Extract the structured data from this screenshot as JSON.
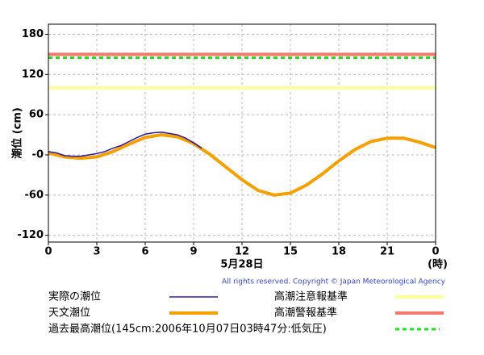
{
  "chart_data": {
    "type": "line",
    "ylabel": "潮位 (cm)",
    "xlabel": "5月28日",
    "xunit": "(時)",
    "copyright": "All rights reserved. Copyright © Japan Meteorological Agency",
    "xlim": [
      0,
      24
    ],
    "xticks": [
      0,
      3,
      6,
      9,
      12,
      15,
      18,
      21,
      {
        "value": 24,
        "label": "0"
      }
    ],
    "ylim": [
      -130,
      195
    ],
    "yticks": [
      -120,
      -60,
      {
        "value": 0,
        "label": "-0"
      },
      60,
      120,
      180
    ],
    "grid": true,
    "series": [
      {
        "name": "実際の潮位",
        "color": "#2a1aa8",
        "x": [
          0,
          0.5,
          1,
          1.5,
          2,
          2.5,
          3,
          3.5,
          4,
          4.5,
          5,
          5.5,
          6,
          6.5,
          7,
          7.5,
          8,
          8.5,
          9,
          9.5
        ],
        "values": [
          5,
          3,
          -1,
          -2,
          -2,
          0,
          2,
          5,
          10,
          14,
          20,
          26,
          31,
          33,
          34,
          32,
          30,
          25,
          18,
          10
        ]
      },
      {
        "name": "天文潮位",
        "color": "#f5a000",
        "x": [
          0,
          1,
          2,
          3,
          4,
          5,
          6,
          7,
          8,
          9,
          10,
          11,
          12,
          13,
          14,
          15,
          16,
          17,
          18,
          19,
          20,
          21,
          22,
          23,
          24
        ],
        "values": [
          3,
          -3,
          -5,
          -3,
          5,
          16,
          26,
          30,
          27,
          17,
          1,
          -18,
          -37,
          -53,
          -60,
          -57,
          -45,
          -28,
          -9,
          8,
          20,
          25,
          25,
          19,
          11
        ]
      }
    ],
    "reference_lines": [
      {
        "name": "高潮注意報基準",
        "color": "#ffff99",
        "value": 100
      },
      {
        "name": "高潮警報基準",
        "color": "#f47a6a",
        "value": 150
      },
      {
        "name": "過去最高潮位(145cm:2006年10月07日03時47分:低気圧)",
        "color": "#22dd22",
        "value": 145,
        "dashed": true
      }
    ]
  }
}
